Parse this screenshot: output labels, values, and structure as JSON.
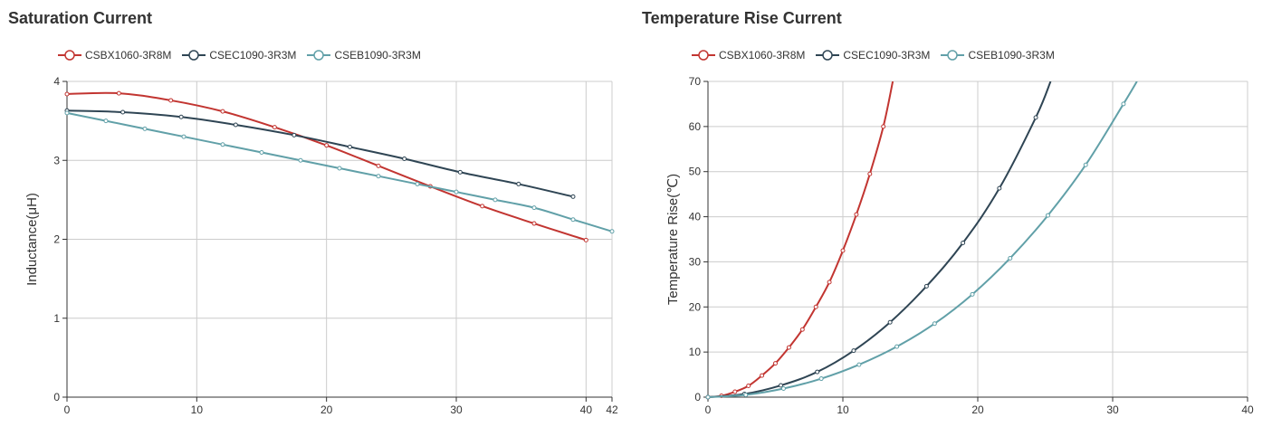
{
  "colors": {
    "series": [
      "#c23531",
      "#2f4554",
      "#61a0a8"
    ],
    "grid": "#cccccc",
    "axis": "#333333",
    "text": "#333333"
  },
  "chart_data": [
    {
      "type": "line",
      "title": "Saturation Current",
      "xlabel": "",
      "ylabel": "Inductance(μH)",
      "xlim": [
        0,
        42
      ],
      "ylim": [
        0,
        4
      ],
      "x_ticks": [
        "0",
        "10",
        "20",
        "30",
        "40",
        "42"
      ],
      "x_tick_values": [
        0,
        10,
        20,
        30,
        40,
        42
      ],
      "y_ticks": [
        "0",
        "1",
        "2",
        "3",
        "4"
      ],
      "y_tick_values": [
        0,
        1,
        2,
        3,
        4
      ],
      "grid": true,
      "legend_position": "top-left",
      "series": [
        {
          "name": "CSBX1060-3R8M",
          "color": "#c23531",
          "x": [
            0,
            4,
            8,
            12,
            16,
            20,
            24,
            28,
            32,
            36,
            40
          ],
          "y": [
            3.84,
            3.85,
            3.76,
            3.62,
            3.42,
            3.19,
            2.93,
            2.67,
            2.42,
            2.2,
            1.99
          ]
        },
        {
          "name": "CSEC1090-3R3M",
          "color": "#2f4554",
          "x": [
            0,
            4.3,
            8.8,
            13,
            17.5,
            21.8,
            26,
            30.3,
            34.8,
            39
          ],
          "y": [
            3.63,
            3.61,
            3.55,
            3.45,
            3.32,
            3.17,
            3.02,
            2.85,
            2.7,
            2.54
          ]
        },
        {
          "name": "CSEB1090-3R3M",
          "color": "#61a0a8",
          "x": [
            0,
            3,
            6,
            9,
            12,
            15,
            18,
            21,
            24,
            27,
            30,
            33,
            36,
            39,
            42
          ],
          "y": [
            3.6,
            3.5,
            3.4,
            3.3,
            3.2,
            3.1,
            3.0,
            2.9,
            2.8,
            2.7,
            2.6,
            2.5,
            2.4,
            2.25,
            2.1
          ]
        }
      ]
    },
    {
      "type": "line",
      "title": "Temperature Rise Current",
      "xlabel": "",
      "ylabel": "Temperature Rise(℃)",
      "xlim": [
        0,
        40
      ],
      "ylim": [
        0,
        70
      ],
      "x_ticks": [
        "0",
        "10",
        "20",
        "30",
        "40"
      ],
      "x_tick_values": [
        0,
        10,
        20,
        30,
        40
      ],
      "y_ticks": [
        "0",
        "10",
        "20",
        "30",
        "40",
        "50",
        "60",
        "70"
      ],
      "y_tick_values": [
        0,
        10,
        20,
        30,
        40,
        50,
        60,
        70
      ],
      "grid": true,
      "legend_position": "top-left",
      "series": [
        {
          "name": "CSBX1060-3R8M",
          "color": "#c23531",
          "x": [
            0,
            1,
            2,
            3,
            4,
            5,
            6,
            7,
            8,
            9,
            10,
            11,
            12,
            13,
            13.7
          ],
          "y": [
            0,
            0.3,
            1.2,
            2.5,
            4.8,
            7.5,
            11,
            15,
            20,
            25.5,
            32.5,
            40.5,
            49.5,
            60,
            70
          ]
        },
        {
          "name": "CSEC1090-3R3M",
          "color": "#2f4554",
          "x": [
            0,
            2.7,
            5.4,
            8.1,
            10.8,
            13.5,
            16.2,
            18.9,
            21.6,
            24.3,
            25.4
          ],
          "y": [
            0,
            0.7,
            2.6,
            5.6,
            10.3,
            16.6,
            24.6,
            34.2,
            46.3,
            62,
            70
          ]
        },
        {
          "name": "CSEB1090-3R3M",
          "color": "#61a0a8",
          "x": [
            0,
            2.8,
            5.6,
            8.4,
            11.2,
            14,
            16.8,
            19.6,
            22.4,
            25.2,
            28,
            30.8,
            31.8
          ],
          "y": [
            0,
            0.5,
            1.9,
            4.1,
            7.2,
            11.2,
            16.3,
            22.8,
            30.8,
            40.3,
            51.5,
            65,
            70
          ]
        }
      ]
    }
  ]
}
